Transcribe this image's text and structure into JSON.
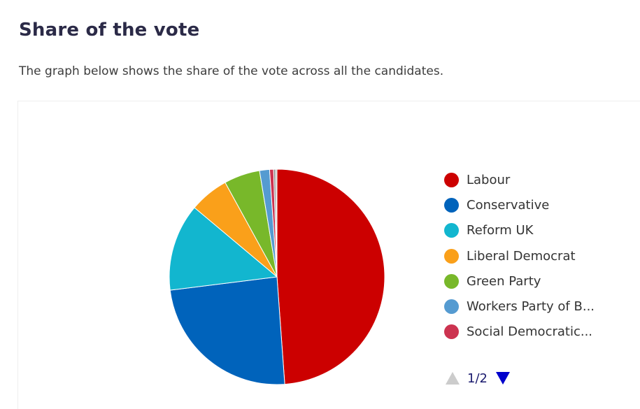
{
  "section": {
    "title": "Share of the vote",
    "description": "The graph below shows the share of the vote across all the candidates."
  },
  "chart_data": {
    "type": "pie",
    "categories": [
      "Labour",
      "Conservative",
      "Reform UK",
      "Liberal Democrat",
      "Green Party",
      "Workers Party of B...",
      "Social Democratic..."
    ],
    "values": [
      48.9,
      24.2,
      13.1,
      5.9,
      5.4,
      1.5,
      0.6
    ],
    "hidden_values": [
      0.3,
      0.2
    ],
    "colors": [
      "#cc0000",
      "#0063bb",
      "#12b6cf",
      "#faa01a",
      "#78b82a",
      "#559bd1",
      "#cc3350"
    ],
    "hidden_colors": [
      "#8a8a8a",
      "#b5b5b5"
    ],
    "legend_position": "right"
  },
  "pager": {
    "text": "1/2",
    "up_icon": "triangle-up-icon",
    "down_icon": "triangle-down-icon",
    "up_color": "#cccccc",
    "down_color": "#0000cc"
  }
}
